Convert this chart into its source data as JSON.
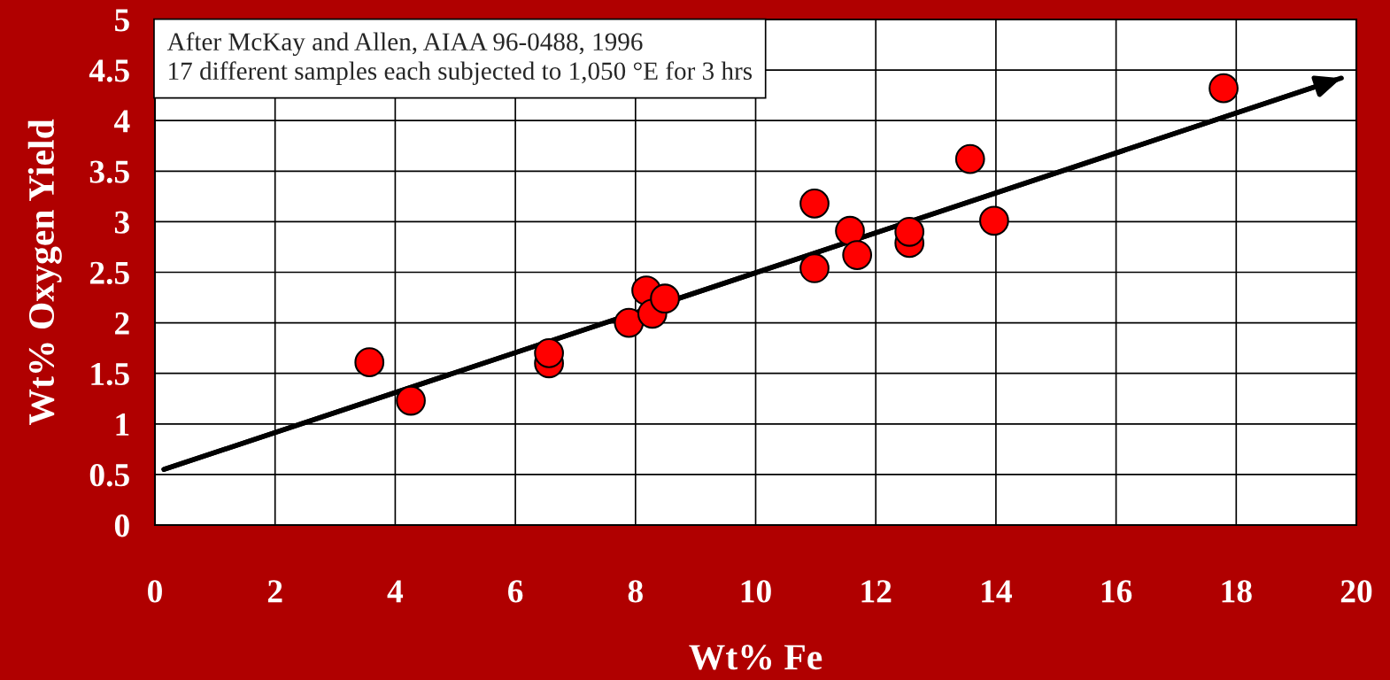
{
  "chart_data": {
    "type": "scatter",
    "xlabel": "Wt% Fe",
    "ylabel": "Wt% Oxygen Yield",
    "annotations": [
      "After McKay and Allen, AIAA 96-0488, 1996\n17 different samples each subjected to 1,050 °E for 3 hrs"
    ],
    "series": [
      {
        "color": "#ff0000",
        "marker": "circle",
        "x": [
          3.57,
          4.26,
          6.56,
          6.56,
          7.89,
          8.18,
          8.28,
          8.49,
          10.98,
          10.98,
          11.57,
          11.69,
          12.56,
          12.56,
          13.57,
          13.97,
          17.79
        ],
        "values": [
          1.61,
          1.23,
          1.6,
          1.7,
          2.0,
          2.32,
          2.09,
          2.24,
          3.18,
          2.54,
          2.91,
          2.67,
          2.79,
          2.9,
          3.62,
          3.01,
          4.32
        ]
      },
      {
        "type": "line",
        "color": "#000000",
        "marker": "none",
        "line_style": "solid",
        "x": [
          0.15,
          19.75
        ],
        "values": [
          0.55,
          4.42
        ]
      }
    ],
    "xlim": [
      0,
      20
    ],
    "xticks": [
      0,
      2,
      4,
      6,
      8,
      10,
      12,
      14,
      16,
      18,
      20
    ],
    "ylim": [
      0,
      5
    ],
    "yticks": [
      0,
      0.5,
      1,
      1.5,
      2,
      2.5,
      3,
      3.5,
      4,
      4.5,
      5
    ],
    "grid": true,
    "legend": false
  }
}
